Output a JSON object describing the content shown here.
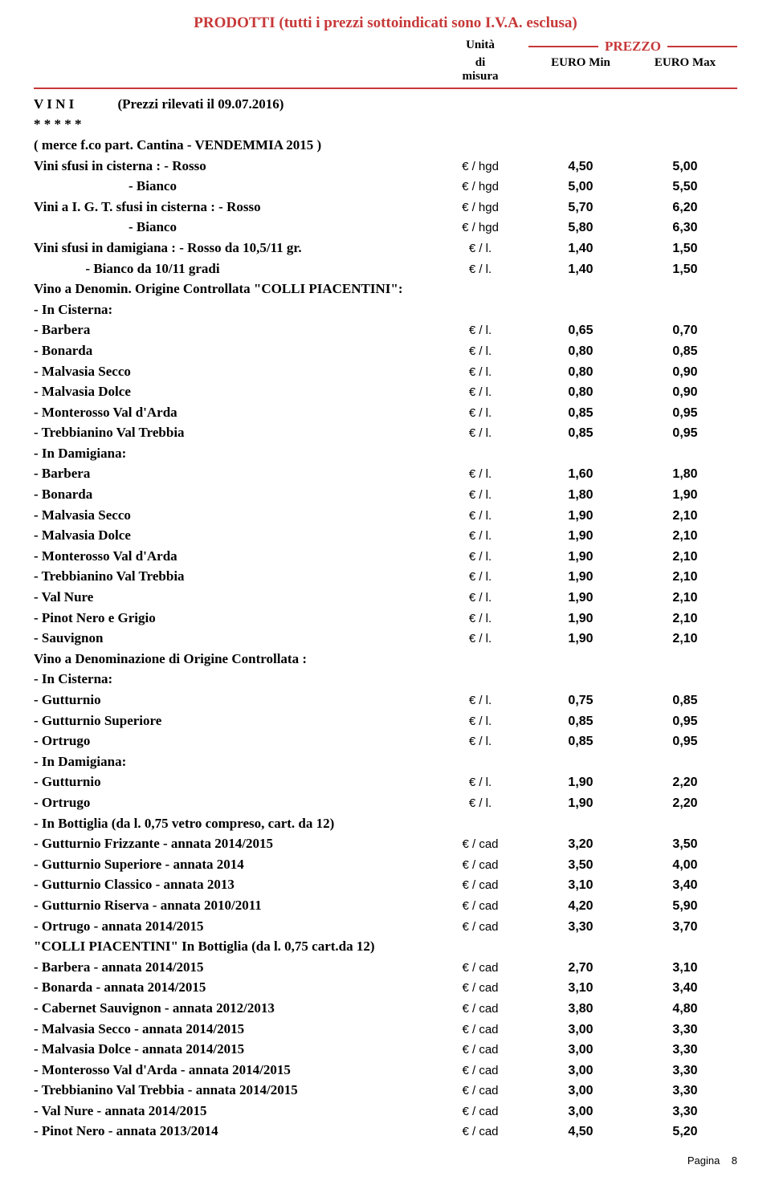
{
  "title": "PRODOTTI  (tutti i prezzi sottoindicati sono I.V.A. esclusa)",
  "header": {
    "unita_l1": "Unità",
    "unita_l2": "di",
    "unita_l3": "misura",
    "prezzo": "PREZZO",
    "min": "EURO Min",
    "max": "EURO Max"
  },
  "vini_heading": "V I N I",
  "vini_date": "(Prezzi rilevati il 09.07.2016)",
  "stars": "* * * * *",
  "merce_line": "(    merce f.co part. Cantina - VENDEMMIA 2015   )",
  "rows": [
    {
      "d": "Vini sfusi in cisterna :  - Rosso",
      "u": "€ / hgd",
      "mn": "4,50",
      "mx": "5,00"
    },
    {
      "d": "- Bianco",
      "align": "r",
      "u": "€ / hgd",
      "mn": "5,00",
      "mx": "5,50"
    },
    {
      "d": "Vini a  I. G. T.  sfusi in cisterna : - Rosso",
      "u": "€ / hgd",
      "mn": "5,70",
      "mx": "6,20"
    },
    {
      "d": "- Bianco",
      "align": "r",
      "u": "€ / hgd",
      "mn": "5,80",
      "mx": "6,30"
    },
    {
      "d": "Vini sfusi in damigiana :  - Rosso da 10,5/11 gr.",
      "u": "€ / l.",
      "mn": "1,40",
      "mx": "1,50"
    },
    {
      "d": "- Bianco da 10/11 gradi",
      "align": "r",
      "u": "€ / l.",
      "mn": "1,40",
      "mx": "1,50"
    },
    {
      "d": "Vino a Denomin. Origine Controllata \"COLLI PIACENTINI\":",
      "section": true
    },
    {
      "d": "- In Cisterna:",
      "section": true
    },
    {
      "d": " - Barbera",
      "u": "€ / l.",
      "mn": "0,65",
      "mx": "0,70"
    },
    {
      "d": " - Bonarda",
      "u": "€ / l.",
      "mn": "0,80",
      "mx": "0,85"
    },
    {
      "d": " - Malvasia Secco",
      "u": "€ / l.",
      "mn": "0,80",
      "mx": "0,90"
    },
    {
      "d": " - Malvasia Dolce",
      "u": "€ / l.",
      "mn": "0,80",
      "mx": "0,90"
    },
    {
      "d": " - Monterosso Val d'Arda",
      "u": "€ / l.",
      "mn": "0,85",
      "mx": "0,95"
    },
    {
      "d": " - Trebbianino Val Trebbia",
      "u": "€ / l.",
      "mn": "0,85",
      "mx": "0,95"
    },
    {
      "d": "- In Damigiana:",
      "section": true
    },
    {
      "d": " - Barbera",
      "u": "€ / l.",
      "mn": "1,60",
      "mx": "1,80"
    },
    {
      "d": " - Bonarda",
      "u": "€ / l.",
      "mn": "1,80",
      "mx": "1,90"
    },
    {
      "d": " - Malvasia Secco",
      "u": "€ / l.",
      "mn": "1,90",
      "mx": "2,10"
    },
    {
      "d": " - Malvasia Dolce",
      "u": "€ / l.",
      "mn": "1,90",
      "mx": "2,10"
    },
    {
      "d": " - Monterosso Val d'Arda",
      "u": "€ / l.",
      "mn": "1,90",
      "mx": "2,10"
    },
    {
      "d": " - Trebbianino Val Trebbia",
      "u": "€ / l.",
      "mn": "1,90",
      "mx": "2,10"
    },
    {
      "d": " - Val Nure",
      "u": "€ / l.",
      "mn": "1,90",
      "mx": "2,10"
    },
    {
      "d": " - Pinot Nero e Grigio",
      "u": "€ / l.",
      "mn": "1,90",
      "mx": "2,10"
    },
    {
      "d": " - Sauvignon",
      "u": "€ / l.",
      "mn": "1,90",
      "mx": "2,10"
    },
    {
      "d": "Vino a Denominazione di Origine Controllata :",
      "section": true
    },
    {
      "d": "- In Cisterna:",
      "section": true
    },
    {
      "d": " - Gutturnio",
      "u": "€ / l.",
      "mn": "0,75",
      "mx": "0,85"
    },
    {
      "d": " - Gutturnio Superiore",
      "u": "€ / l.",
      "mn": "0,85",
      "mx": "0,95"
    },
    {
      "d": " - Ortrugo",
      "u": "€ / l.",
      "mn": "0,85",
      "mx": "0,95"
    },
    {
      "d": "- In Damigiana:",
      "section": true
    },
    {
      "d": " - Gutturnio",
      "u": "€ / l.",
      "mn": "1,90",
      "mx": "2,20"
    },
    {
      "d": " - Ortrugo",
      "u": "€ / l.",
      "mn": "1,90",
      "mx": "2,20"
    },
    {
      "d": "- In Bottiglia (da l. 0,75 vetro compreso, cart. da 12)",
      "section": true
    },
    {
      "d": " - Gutturnio Frizzante - annata 2014/2015",
      "u": "€ / cad",
      "mn": "3,20",
      "mx": "3,50"
    },
    {
      "d": " - Gutturnio Superiore - annata 2014",
      "u": "€ / cad",
      "mn": "3,50",
      "mx": "4,00"
    },
    {
      "d": " - Gutturnio Classico  - annata 2013",
      "u": "€ / cad",
      "mn": "3,10",
      "mx": "3,40"
    },
    {
      "d": " - Gutturnio Riserva  - annata 2010/2011",
      "u": "€ / cad",
      "mn": "4,20",
      "mx": "5,90"
    },
    {
      "d": " - Ortrugo - annata 2014/2015",
      "u": "€ / cad",
      "mn": "3,30",
      "mx": "3,70"
    },
    {
      "d": "\"COLLI PIACENTINI\" In Bottiglia (da l. 0,75 cart.da 12)",
      "section": true
    },
    {
      "d": " - Barbera - annata 2014/2015",
      "u": "€ / cad",
      "mn": "2,70",
      "mx": "3,10"
    },
    {
      "d": " - Bonarda - annata 2014/2015",
      "u": "€ / cad",
      "mn": "3,10",
      "mx": "3,40"
    },
    {
      "d": " - Cabernet Sauvignon - annata 2012/2013",
      "u": "€ / cad",
      "mn": "3,80",
      "mx": "4,80"
    },
    {
      "d": " - Malvasia Secco - annata 2014/2015",
      "u": "€ / cad",
      "mn": "3,00",
      "mx": "3,30"
    },
    {
      "d": " - Malvasia Dolce - annata 2014/2015",
      "u": "€ / cad",
      "mn": "3,00",
      "mx": "3,30"
    },
    {
      "d": " - Monterosso Val d'Arda - annata 2014/2015",
      "u": "€ / cad",
      "mn": "3,00",
      "mx": "3,30"
    },
    {
      "d": " - Trebbianino Val Trebbia - annata 2014/2015",
      "u": "€ / cad",
      "mn": "3,00",
      "mx": "3,30"
    },
    {
      "d": " - Val Nure - annata 2014/2015",
      "u": "€ / cad",
      "mn": "3,00",
      "mx": "3,30"
    },
    {
      "d": " - Pinot Nero - annata 2013/2014",
      "u": "€ / cad",
      "mn": "4,50",
      "mx": "5,20"
    }
  ],
  "footer_label": "Pagina",
  "footer_page": "8"
}
